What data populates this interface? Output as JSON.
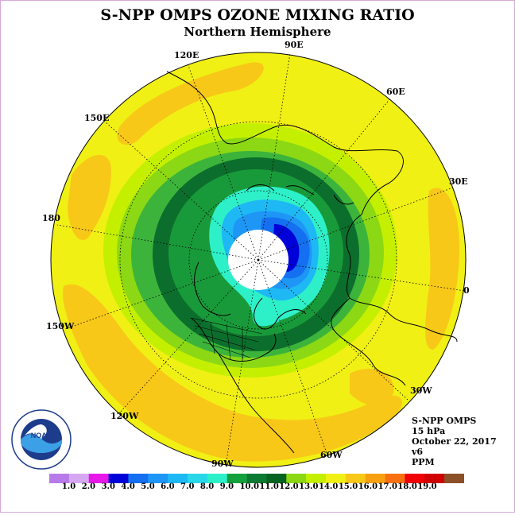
{
  "title": "S-NPP OMPS OZONE MIXING RATIO",
  "subtitle": "Northern Hemisphere",
  "longitude_labels": {
    "lon_90e": "90E",
    "lon_120e": "120E",
    "lon_60e": "60E",
    "lon_150e": "150E",
    "lon_30e": "30E",
    "lon_180": "180",
    "lon_0": "0",
    "lon_150w": "150W",
    "lon_30w": "30W",
    "lon_120w": "120W",
    "lon_60w": "60W",
    "lon_90w": "90W"
  },
  "info": {
    "instrument": "S-NPP OMPS",
    "pressure": "15 hPa",
    "date": "October 22, 2017",
    "version": "v6",
    "units": "PPM"
  },
  "logo": {
    "text": "NOAA",
    "ring_text": "NATIONAL OCEANIC AND ATMOSPHERIC ADMINISTRATION · U.S. DEPARTMENT OF COMMERCE"
  },
  "colorbar": {
    "colors": [
      "#b87ae8",
      "#d6a8f2",
      "#e818e8",
      "#0000d8",
      "#1470f0",
      "#1e96f5",
      "#1eb8f5",
      "#28d8e8",
      "#2ef0c8",
      "#14a03c",
      "#0c7a30",
      "#066420",
      "#8cd814",
      "#c4f000",
      "#f0f014",
      "#f8c818",
      "#f8a010",
      "#f87010",
      "#f00000",
      "#d00000",
      "#8c5028"
    ],
    "ticks": [
      "1.0",
      "2.0",
      "3.0",
      "4.0",
      "5.0",
      "6.0",
      "7.0",
      "8.0",
      "9.0",
      "10.0",
      "11.0",
      "12.0",
      "13.0",
      "14.0",
      "15.0",
      "16.0",
      "17.0",
      "18.0",
      "19.0"
    ]
  }
}
